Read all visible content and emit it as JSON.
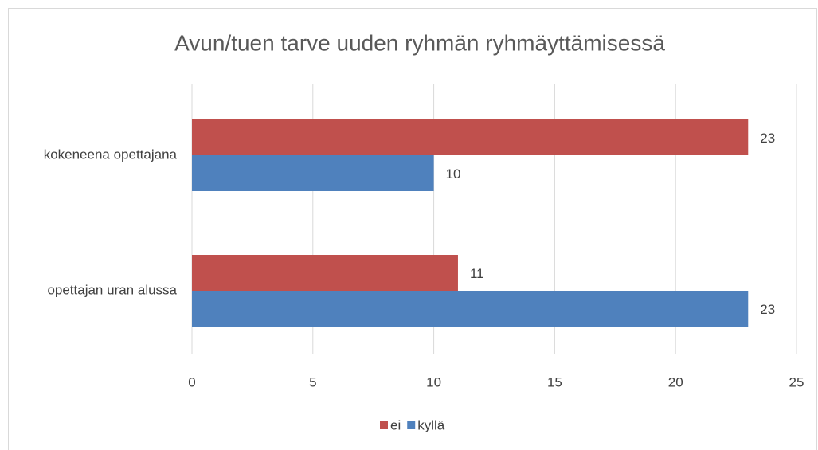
{
  "chart_data": {
    "type": "hbar",
    "title": "Avun/tuen tarve uuden ryhmän ryhmäyttämisessä",
    "categories": [
      "kokeneena opettajana",
      "opettajan uran alussa"
    ],
    "series": [
      {
        "name": "ei",
        "color": "#c0504d",
        "values": [
          23,
          11
        ]
      },
      {
        "name": "kyllä",
        "color": "#4f81bd",
        "values": [
          10,
          23
        ]
      }
    ],
    "xlim": [
      0,
      25
    ],
    "xticks": [
      0,
      5,
      10,
      15,
      20,
      25
    ],
    "grid": true,
    "legend": "bottom"
  }
}
